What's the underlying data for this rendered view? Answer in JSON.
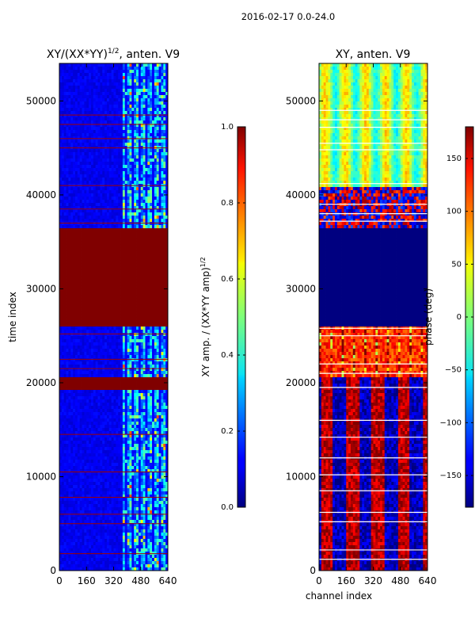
{
  "suptitle": "2016-02-17 0.0-24.0",
  "chart_data": [
    {
      "type": "heatmap",
      "title": "XY/(XX*YY)^{1/2}, anten. V9",
      "title_main": "XY/(XX*YY)",
      "title_exp": "1/2",
      "title_tail": ", anten. V9",
      "xlabel": "",
      "ylabel": "time index",
      "xlim": [
        0,
        640
      ],
      "ylim": [
        0,
        54000
      ],
      "xticks": [
        0,
        160,
        320,
        480,
        640
      ],
      "yticks": [
        0,
        10000,
        20000,
        30000,
        40000,
        50000
      ],
      "colorbar": {
        "label_main": "XY amp. / (XX*YY amp)",
        "label_exp": "1/2",
        "range": [
          0.0,
          1.0
        ],
        "ticks": [
          "0.0",
          "0.2",
          "0.4",
          "0.6",
          "0.8",
          "1.0"
        ],
        "tick_values": [
          0.0,
          0.2,
          0.4,
          0.6,
          0.8,
          1.0
        ]
      },
      "saturated_bands": [
        {
          "from": 26000,
          "to": 36500,
          "value": 1.0
        },
        {
          "from": 19200,
          "to": 20500,
          "value": 1.0
        }
      ],
      "hot_channel_range": [
        380,
        640
      ]
    },
    {
      "type": "heatmap",
      "title": "XY, anten. V9",
      "xlabel": "channel index",
      "ylabel": "",
      "xlim": [
        0,
        640
      ],
      "ylim": [
        0,
        54000
      ],
      "xticks": [
        0,
        160,
        320,
        480,
        640
      ],
      "yticks": [
        0,
        10000,
        20000,
        30000,
        40000,
        50000
      ],
      "colorbar": {
        "label": "phase (deg)",
        "range": [
          -180,
          180
        ],
        "ticks": [
          "150",
          "100",
          "50",
          "0",
          "−50",
          "−100",
          "−150"
        ],
        "tick_values": [
          150,
          100,
          50,
          0,
          -50,
          -100,
          -150
        ]
      },
      "uniform_bands": [
        {
          "from": 26000,
          "to": 36500,
          "value": -180
        }
      ]
    }
  ]
}
